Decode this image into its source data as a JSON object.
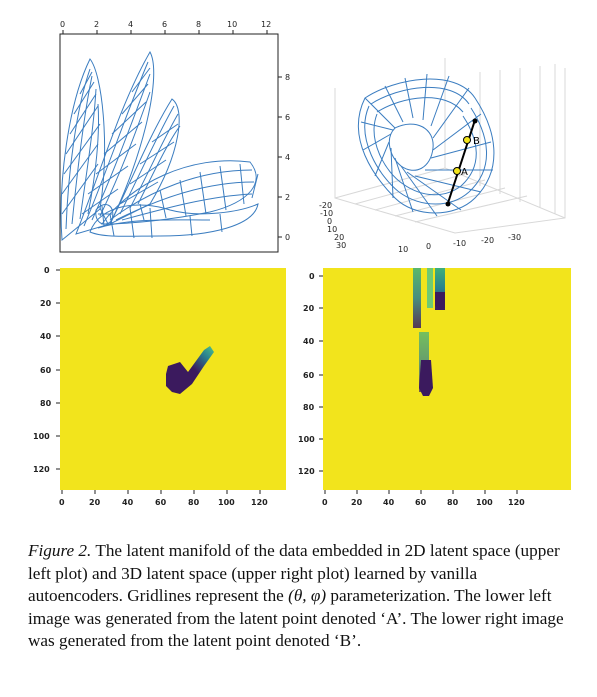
{
  "panels": {
    "top_left": {
      "x_ticks": [
        "0",
        "2",
        "4",
        "6",
        "8",
        "10",
        "12"
      ],
      "y_ticks": [
        "8",
        "6",
        "4",
        "2",
        "0"
      ]
    },
    "top_right": {
      "axis1_ticks": [
        "-20",
        "-10",
        "0",
        "10",
        "20",
        "30"
      ],
      "axis2_ticks": [
        "10",
        "0",
        "-10",
        "-20",
        "-30"
      ],
      "point_a_label": "A",
      "point_b_label": "B"
    },
    "bottom_left": {
      "y_ticks": [
        "0",
        "20",
        "40",
        "60",
        "80",
        "100",
        "120"
      ],
      "x_ticks": [
        "0",
        "20",
        "40",
        "60",
        "80",
        "100",
        "120"
      ]
    },
    "bottom_right": {
      "y_ticks": [
        "0",
        "20",
        "40",
        "60",
        "80",
        "100",
        "120"
      ],
      "x_ticks": [
        "0",
        "20",
        "40",
        "60",
        "80",
        "100",
        "120"
      ]
    }
  },
  "colors": {
    "mesh": "#3b7dc0",
    "image_background": "#f2e41c",
    "image_dark": "#3b1a5e",
    "image_teal": "#2fa89a"
  },
  "caption": {
    "lead": "Figure 2.",
    "text_1": " The latent manifold of the data embedded in 2D latent space (upper left plot) and 3D latent space (upper right plot) learned by vanilla autoencoders. Gridlines represent the ",
    "math": "(θ, φ)",
    "text_2": " parameterization. The lower left image was generated from the latent point denoted ‘A’. The lower right image was generated from the latent point denoted ‘B’."
  }
}
